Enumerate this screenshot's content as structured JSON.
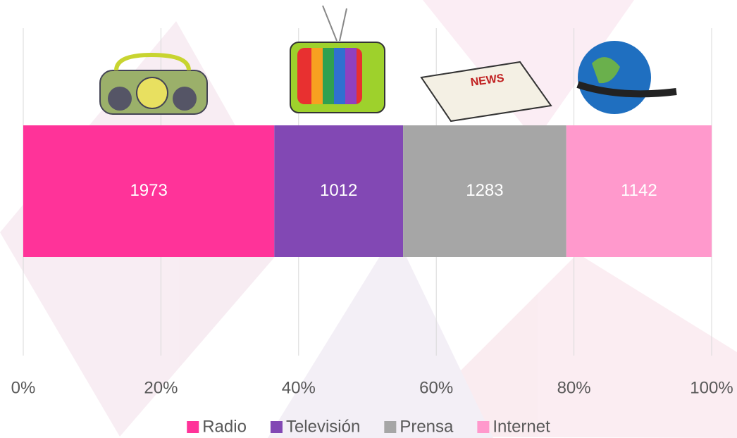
{
  "chart_data": {
    "type": "bar",
    "orientation": "horizontal",
    "stacking": "percent",
    "series": [
      {
        "name": "Radio",
        "color": "#ff3399",
        "values": [
          1973
        ]
      },
      {
        "name": "Televisión",
        "color": "#8248b4",
        "values": [
          1012
        ]
      },
      {
        "name": "Prensa",
        "color": "#a6a6a6",
        "values": [
          1283
        ]
      },
      {
        "name": "Internet",
        "color": "#ff99cc",
        "values": [
          1142
        ]
      }
    ],
    "xlim": [
      0,
      100
    ],
    "xticks": [
      {
        "value": 0,
        "label": "0%"
      },
      {
        "value": 20,
        "label": "20%"
      },
      {
        "value": 40,
        "label": "40%"
      },
      {
        "value": 60,
        "label": "60%"
      },
      {
        "value": 80,
        "label": "80%"
      },
      {
        "value": 100,
        "label": "100%"
      }
    ],
    "grid": true,
    "legend": "bottom"
  }
}
